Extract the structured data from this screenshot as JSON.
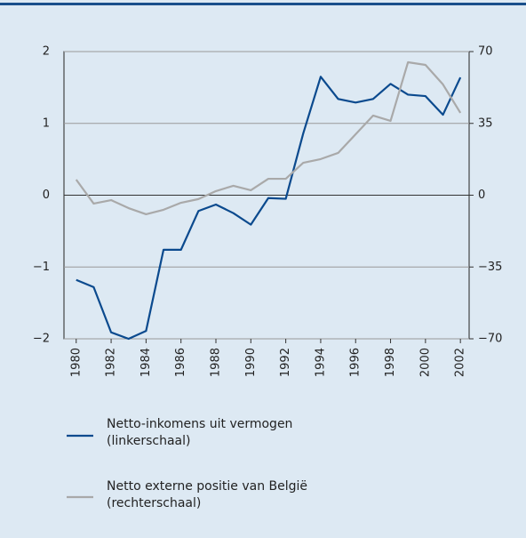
{
  "chart_data": {
    "type": "line",
    "x": [
      1980,
      1981,
      1982,
      1983,
      1984,
      1985,
      1986,
      1987,
      1988,
      1989,
      1990,
      1991,
      1992,
      1993,
      1994,
      1995,
      1996,
      1997,
      1998,
      1999,
      2000,
      2001,
      2002
    ],
    "xlim": [
      1979.3,
      2002.5
    ],
    "xticks": [
      1980,
      1982,
      1984,
      1986,
      1988,
      1990,
      1992,
      1994,
      1996,
      1998,
      2000,
      2002
    ],
    "ylim": [
      -2,
      2
    ],
    "yticks": [
      {
        "value": -2,
        "label": "−2"
      },
      {
        "value": -1,
        "label": "−1"
      },
      0,
      1,
      2
    ],
    "y2lim": [
      -70,
      70
    ],
    "y2ticks": [
      {
        "value": -70,
        "label": "−70"
      },
      {
        "value": -35,
        "label": "−35"
      },
      0,
      35,
      70
    ],
    "grid": true,
    "series": [
      {
        "name": "Netto-inkomens uit vermogen (linkerschaal)",
        "color": "#0b4a8e",
        "values": [
          -1.18,
          -1.28,
          -1.91,
          -2.0,
          -1.89,
          -0.76,
          -0.76,
          -0.22,
          -0.13,
          -0.25,
          -0.41,
          -0.04,
          -0.05,
          0.86,
          1.65,
          1.34,
          1.29,
          1.34,
          1.55,
          1.4,
          1.38,
          1.12,
          1.64
        ]
      },
      {
        "name": "Netto externe positie van België (rechterschaal)",
        "color": "#a9a9a9",
        "axis": "y2",
        "values": [
          7.6,
          -4.1,
          -2.4,
          -6.3,
          -9.3,
          -7.1,
          -3.7,
          -1.9,
          2.0,
          4.6,
          2.4,
          8.0,
          8.0,
          15.8,
          17.6,
          20.6,
          29.7,
          38.8,
          36.2,
          64.8,
          63.5,
          54.0,
          40.1
        ]
      }
    ]
  }
}
